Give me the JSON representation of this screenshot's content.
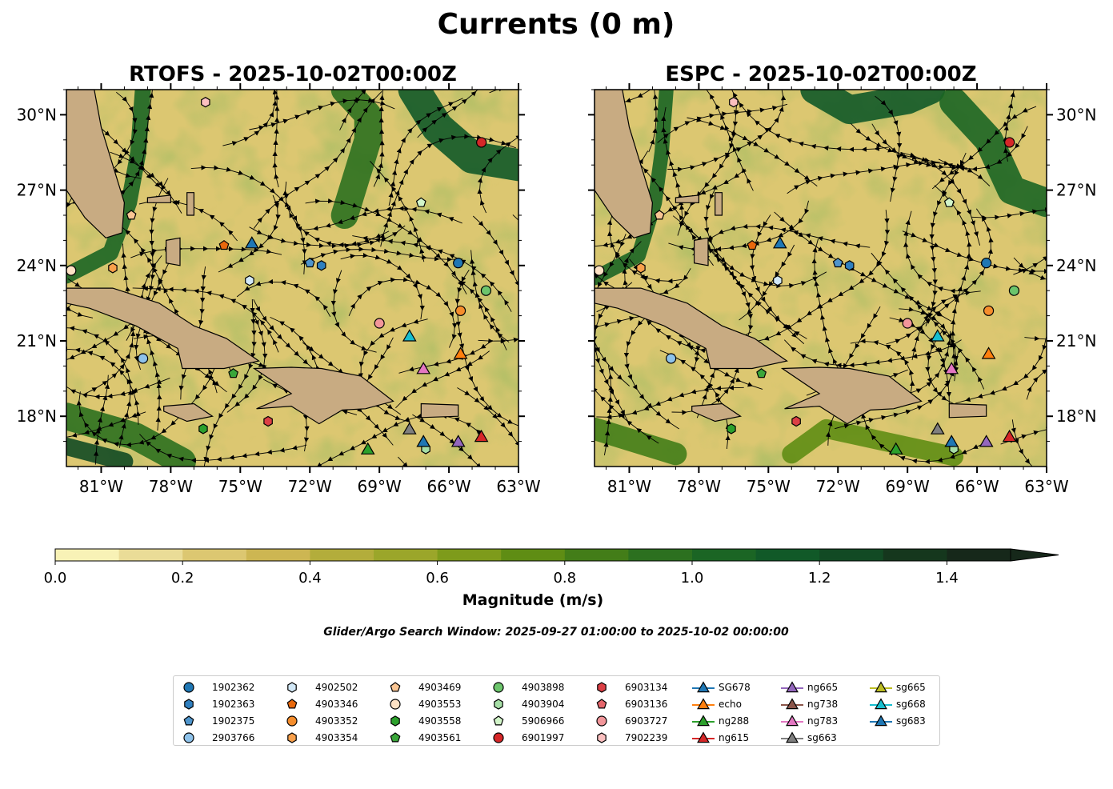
{
  "figure": {
    "suptitle": "Currents (0 m)",
    "search_window": "Glider/Argo Search Window: 2025-09-27 01:00:00 to 2025-10-02 00:00:00"
  },
  "chart_data": [
    {
      "type": "heatmap",
      "title": "RTOFS - 2025-10-02T00:00Z",
      "x_ticks": [
        "81°W",
        "78°W",
        "75°W",
        "72°W",
        "69°W",
        "66°W",
        "63°W"
      ],
      "y_ticks": [
        "30°N",
        "27°N",
        "24°N",
        "21°N",
        "18°N"
      ],
      "xlim": [
        -82.5,
        -63
      ],
      "ylim": [
        16,
        31
      ],
      "markers": [
        {
          "id": "1902362",
          "lon": -65.6,
          "lat": 24.1
        },
        {
          "id": "1902363",
          "lon": -71.5,
          "lat": 24.0
        },
        {
          "id": "1902375",
          "lon": -72.0,
          "lat": 24.1
        },
        {
          "id": "2903766",
          "lon": -79.2,
          "lat": 20.3
        },
        {
          "id": "4902502",
          "lon": -74.6,
          "lat": 23.4
        },
        {
          "id": "4903346",
          "lon": -75.7,
          "lat": 24.8
        },
        {
          "id": "4903352",
          "lon": -65.5,
          "lat": 22.2
        },
        {
          "id": "4903354",
          "lon": -80.5,
          "lat": 23.9
        },
        {
          "id": "4903469",
          "lon": -79.7,
          "lat": 26.0
        },
        {
          "id": "4903553",
          "lon": -82.3,
          "lat": 23.8
        },
        {
          "id": "4903558",
          "lon": -76.6,
          "lat": 17.5
        },
        {
          "id": "4903561",
          "lon": -75.3,
          "lat": 19.7
        },
        {
          "id": "4903898",
          "lon": -64.4,
          "lat": 23.0
        },
        {
          "id": "4903904",
          "lon": -67.0,
          "lat": 16.7
        },
        {
          "id": "5906966",
          "lon": -67.2,
          "lat": 26.5
        },
        {
          "id": "6901997",
          "lon": -64.6,
          "lat": 28.9
        },
        {
          "id": "6903134",
          "lon": -73.8,
          "lat": 17.8
        },
        {
          "id": "6903727",
          "lon": -69.0,
          "lat": 21.7
        },
        {
          "id": "7902239",
          "lon": -76.5,
          "lat": 30.5
        },
        {
          "id": "SG678",
          "lon": -74.5,
          "lat": 24.9
        },
        {
          "id": "echo",
          "lon": -65.5,
          "lat": 20.5
        },
        {
          "id": "ng288",
          "lon": -69.5,
          "lat": 16.7
        },
        {
          "id": "ng615",
          "lon": -64.6,
          "lat": 17.2
        },
        {
          "id": "ng665",
          "lon": -65.6,
          "lat": 17.0
        },
        {
          "id": "ng783",
          "lon": -67.1,
          "lat": 19.9
        },
        {
          "id": "sg663",
          "lon": -67.7,
          "lat": 17.5
        },
        {
          "id": "sg668",
          "lon": -67.7,
          "lat": 21.2
        },
        {
          "id": "sg683",
          "lon": -67.1,
          "lat": 17.0
        }
      ]
    },
    {
      "type": "heatmap",
      "title": "ESPC - 2025-10-02T00:00Z",
      "x_ticks": [
        "81°W",
        "78°W",
        "75°W",
        "72°W",
        "69°W",
        "66°W",
        "63°W"
      ],
      "y_ticks": [
        "30°N",
        "27°N",
        "24°N",
        "21°N",
        "18°N"
      ],
      "xlim": [
        -82.5,
        -63
      ],
      "ylim": [
        16,
        31
      ],
      "markers": [
        {
          "id": "1902362",
          "lon": -65.6,
          "lat": 24.1
        },
        {
          "id": "1902363",
          "lon": -71.5,
          "lat": 24.0
        },
        {
          "id": "1902375",
          "lon": -72.0,
          "lat": 24.1
        },
        {
          "id": "2903766",
          "lon": -79.2,
          "lat": 20.3
        },
        {
          "id": "4902502",
          "lon": -74.6,
          "lat": 23.4
        },
        {
          "id": "4903346",
          "lon": -75.7,
          "lat": 24.8
        },
        {
          "id": "4903352",
          "lon": -65.5,
          "lat": 22.2
        },
        {
          "id": "4903354",
          "lon": -80.5,
          "lat": 23.9
        },
        {
          "id": "4903469",
          "lon": -79.7,
          "lat": 26.0
        },
        {
          "id": "4903553",
          "lon": -82.3,
          "lat": 23.8
        },
        {
          "id": "4903558",
          "lon": -76.6,
          "lat": 17.5
        },
        {
          "id": "4903561",
          "lon": -75.3,
          "lat": 19.7
        },
        {
          "id": "4903898",
          "lon": -64.4,
          "lat": 23.0
        },
        {
          "id": "4903904",
          "lon": -67.0,
          "lat": 16.7
        },
        {
          "id": "5906966",
          "lon": -67.2,
          "lat": 26.5
        },
        {
          "id": "6901997",
          "lon": -64.6,
          "lat": 28.9
        },
        {
          "id": "6903134",
          "lon": -73.8,
          "lat": 17.8
        },
        {
          "id": "6903727",
          "lon": -69.0,
          "lat": 21.7
        },
        {
          "id": "7902239",
          "lon": -76.5,
          "lat": 30.5
        },
        {
          "id": "SG678",
          "lon": -74.5,
          "lat": 24.9
        },
        {
          "id": "echo",
          "lon": -65.5,
          "lat": 20.5
        },
        {
          "id": "ng288",
          "lon": -69.5,
          "lat": 16.7
        },
        {
          "id": "ng615",
          "lon": -64.6,
          "lat": 17.2
        },
        {
          "id": "ng665",
          "lon": -65.6,
          "lat": 17.0
        },
        {
          "id": "ng783",
          "lon": -67.1,
          "lat": 19.9
        },
        {
          "id": "sg663",
          "lon": -67.7,
          "lat": 17.5
        },
        {
          "id": "sg668",
          "lon": -67.7,
          "lat": 21.2
        },
        {
          "id": "sg683",
          "lon": -67.1,
          "lat": 17.0
        }
      ]
    }
  ],
  "colorbar": {
    "label": "Magnitude (m/s)",
    "ticks": [
      "0.0",
      "0.2",
      "0.4",
      "0.6",
      "0.8",
      "1.0",
      "1.2",
      "1.4"
    ],
    "levels": [
      0,
      0.1,
      0.2,
      0.3,
      0.4,
      0.5,
      0.6,
      0.7,
      0.8,
      0.9,
      1.0,
      1.1,
      1.2,
      1.3,
      1.4,
      1.5
    ],
    "colors": [
      "#f8f2b6",
      "#eadc97",
      "#dcc771",
      "#cdb652",
      "#b3ad3b",
      "#9ba62a",
      "#7e9b1b",
      "#5f8d14",
      "#437d18",
      "#2c701f",
      "#1b6524",
      "#115928",
      "#124a24",
      "#15371d",
      "#16281a"
    ]
  },
  "legend": {
    "columns": [
      [
        {
          "label": "1902362",
          "shape": "circle",
          "color": "#1f77b4"
        },
        {
          "label": "1902363",
          "shape": "hexagon",
          "color": "#2f7fbf"
        },
        {
          "label": "1902375",
          "shape": "pentagon",
          "color": "#4f95cc"
        },
        {
          "label": "2903766",
          "shape": "circle",
          "color": "#8ec2ea"
        }
      ],
      [
        {
          "label": "4902502",
          "shape": "hexagon",
          "color": "#d2e8f7"
        },
        {
          "label": "4903346",
          "shape": "pentagon",
          "color": "#e8680c"
        },
        {
          "label": "4903352",
          "shape": "circle",
          "color": "#f58d2c"
        },
        {
          "label": "4903354",
          "shape": "hexagon",
          "color": "#f9a04b"
        }
      ],
      [
        {
          "label": "4903469",
          "shape": "pentagon",
          "color": "#f9c593"
        },
        {
          "label": "4903553",
          "shape": "circle",
          "color": "#fde2c5"
        },
        {
          "label": "4903558",
          "shape": "hexagon",
          "color": "#2ca02c"
        },
        {
          "label": "4903561",
          "shape": "pentagon",
          "color": "#3aa63a"
        }
      ],
      [
        {
          "label": "4903898",
          "shape": "circle",
          "color": "#6cc56c"
        },
        {
          "label": "4903904",
          "shape": "hexagon",
          "color": "#a6dea6"
        },
        {
          "label": "5906966",
          "shape": "pentagon",
          "color": "#d2f5c9"
        },
        {
          "label": "6901997",
          "shape": "circle",
          "color": "#d62728"
        }
      ],
      [
        {
          "label": "6903134",
          "shape": "hexagon",
          "color": "#dc3f45"
        },
        {
          "label": "6903136",
          "shape": "pentagon",
          "color": "#e5666c"
        },
        {
          "label": "6903727",
          "shape": "circle",
          "color": "#f2969a"
        },
        {
          "label": "7902239",
          "shape": "hexagon",
          "color": "#fbc0c0"
        }
      ],
      [
        {
          "label": "SG678",
          "shape": "triangle",
          "color": "#1f77b4"
        },
        {
          "label": "echo",
          "shape": "triangle",
          "color": "#ff7f0e"
        },
        {
          "label": "ng288",
          "shape": "triangle",
          "color": "#2ca02c"
        },
        {
          "label": "ng615",
          "shape": "triangle",
          "color": "#d62728"
        }
      ],
      [
        {
          "label": "ng665",
          "shape": "triangle",
          "color": "#9467bd"
        },
        {
          "label": "ng738",
          "shape": "triangle",
          "color": "#8c564b"
        },
        {
          "label": "ng783",
          "shape": "triangle",
          "color": "#e377c2"
        },
        {
          "label": "sg663",
          "shape": "triangle",
          "color": "#7f7f7f"
        }
      ],
      [
        {
          "label": "sg665",
          "shape": "triangle",
          "color": "#bcbd22"
        },
        {
          "label": "sg668",
          "shape": "triangle",
          "color": "#17becf"
        },
        {
          "label": "sg683",
          "shape": "triangle",
          "color": "#1f77b4"
        }
      ]
    ]
  }
}
